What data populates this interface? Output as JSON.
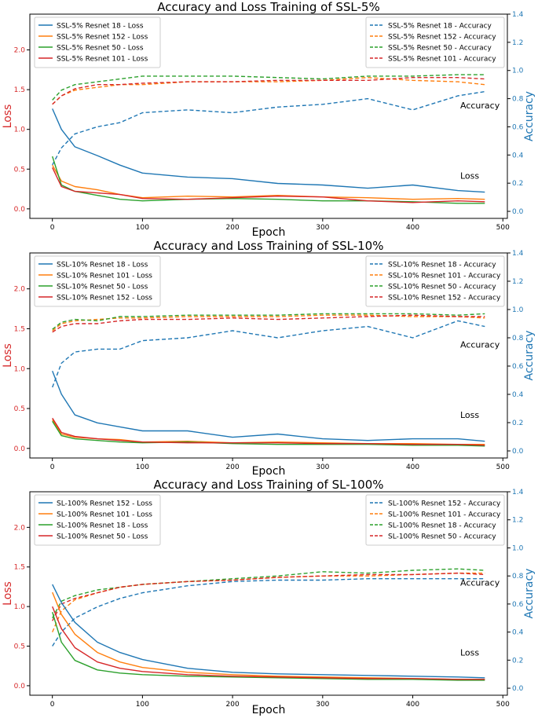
{
  "colors": {
    "c18": "#1f77b4",
    "c101": "#ff7f0e",
    "c50": "#2ca02c",
    "c152": "#d62728",
    "loss_axis": "#d62728",
    "acc_axis": "#1f77b4"
  },
  "chart_data": [
    {
      "type": "line",
      "title": "Accuracy and Loss Training of SSL-5%",
      "xlabel": "Epoch",
      "ylabel": "Loss",
      "y2label": "Accuracy",
      "xlim": [
        -25,
        505
      ],
      "ylim": [
        -0.12,
        2.45
      ],
      "y2lim": [
        -0.05,
        1.4
      ],
      "xticks": [
        "0",
        "100",
        "200",
        "300",
        "400",
        "500"
      ],
      "yticks": [
        "0.0",
        "0.5",
        "1.0",
        "1.5",
        "2.0"
      ],
      "y2ticks": [
        "0.0",
        "0.2",
        "0.4",
        "0.6",
        "0.8",
        "1.0",
        "1.2",
        "1.4"
      ],
      "annotations": [
        "Accuracy",
        "Loss"
      ],
      "legend_loss_position": "top-left",
      "legend_acc_position": "top-right",
      "loss_series": [
        {
          "name": "SSL-5% Resnet 18 - Loss",
          "color": "#1f77b4",
          "x": [
            0,
            10,
            25,
            50,
            75,
            100,
            150,
            200,
            250,
            300,
            350,
            400,
            450,
            480
          ],
          "y": [
            1.26,
            1.0,
            0.78,
            0.67,
            0.55,
            0.45,
            0.4,
            0.38,
            0.32,
            0.3,
            0.26,
            0.3,
            0.23,
            0.21
          ]
        },
        {
          "name": "SSL-5% Resnet 152 - Loss",
          "color": "#ff7f0e",
          "x": [
            0,
            10,
            25,
            50,
            75,
            100,
            150,
            200,
            250,
            300,
            350,
            400,
            450,
            480
          ],
          "y": [
            0.55,
            0.35,
            0.28,
            0.24,
            0.18,
            0.14,
            0.16,
            0.15,
            0.17,
            0.15,
            0.14,
            0.12,
            0.13,
            0.12
          ]
        },
        {
          "name": "SSL-5% Resnet 50 - Loss",
          "color": "#2ca02c",
          "x": [
            0,
            10,
            25,
            50,
            75,
            100,
            150,
            200,
            250,
            300,
            350,
            400,
            450,
            480
          ],
          "y": [
            0.66,
            0.3,
            0.22,
            0.17,
            0.12,
            0.1,
            0.12,
            0.13,
            0.12,
            0.1,
            0.1,
            0.09,
            0.07,
            0.07
          ]
        },
        {
          "name": "SSL-5% Resnet 101 - Loss",
          "color": "#d62728",
          "x": [
            0,
            10,
            25,
            50,
            75,
            100,
            150,
            200,
            250,
            300,
            350,
            400,
            450,
            480
          ],
          "y": [
            0.52,
            0.28,
            0.22,
            0.2,
            0.18,
            0.13,
            0.12,
            0.14,
            0.16,
            0.15,
            0.1,
            0.08,
            0.1,
            0.09
          ]
        }
      ],
      "acc_series": [
        {
          "name": "SSL-5% Resnet 18 - Accuracy",
          "color": "#1f77b4",
          "x": [
            0,
            10,
            25,
            50,
            75,
            100,
            150,
            200,
            250,
            300,
            350,
            400,
            450,
            480
          ],
          "y": [
            0.33,
            0.45,
            0.55,
            0.6,
            0.63,
            0.7,
            0.72,
            0.7,
            0.74,
            0.76,
            0.8,
            0.72,
            0.82,
            0.85
          ]
        },
        {
          "name": "SSL-5% Resnet 152 - Accuracy",
          "color": "#ff7f0e",
          "x": [
            0,
            10,
            25,
            50,
            75,
            100,
            150,
            200,
            250,
            300,
            350,
            400,
            450,
            480
          ],
          "y": [
            0.76,
            0.82,
            0.86,
            0.88,
            0.9,
            0.9,
            0.92,
            0.92,
            0.92,
            0.93,
            0.95,
            0.93,
            0.92,
            0.9
          ]
        },
        {
          "name": "SSL-5% Resnet 50 - Accuracy",
          "color": "#2ca02c",
          "x": [
            0,
            10,
            25,
            50,
            75,
            100,
            150,
            200,
            250,
            300,
            350,
            400,
            450,
            480
          ],
          "y": [
            0.79,
            0.86,
            0.9,
            0.92,
            0.94,
            0.96,
            0.96,
            0.96,
            0.95,
            0.94,
            0.96,
            0.96,
            0.97,
            0.97
          ]
        },
        {
          "name": "SSL-5% Resnet 101 - Accuracy",
          "color": "#d62728",
          "x": [
            0,
            10,
            25,
            50,
            75,
            100,
            150,
            200,
            250,
            300,
            350,
            400,
            450,
            480
          ],
          "y": [
            0.76,
            0.82,
            0.87,
            0.9,
            0.9,
            0.91,
            0.92,
            0.92,
            0.93,
            0.93,
            0.93,
            0.95,
            0.95,
            0.94
          ]
        }
      ]
    },
    {
      "type": "line",
      "title": "Accuracy and Loss Training of SSL-10%",
      "xlabel": "Epoch",
      "ylabel": "Loss",
      "y2label": "Accuracy",
      "xlim": [
        -25,
        505
      ],
      "ylim": [
        -0.12,
        2.45
      ],
      "y2lim": [
        -0.05,
        1.4
      ],
      "xticks": [
        "0",
        "100",
        "200",
        "300",
        "400",
        "500"
      ],
      "yticks": [
        "0.0",
        "0.5",
        "1.0",
        "1.5",
        "2.0"
      ],
      "y2ticks": [
        "0.0",
        "0.2",
        "0.4",
        "0.6",
        "0.8",
        "1.0",
        "1.2",
        "1.4"
      ],
      "annotations": [
        "Accuracy",
        "Loss"
      ],
      "legend_loss_position": "top-left",
      "legend_acc_position": "top-right",
      "loss_series": [
        {
          "name": "SSL-10% Resnet 18 - Loss",
          "color": "#1f77b4",
          "x": [
            0,
            10,
            25,
            50,
            75,
            100,
            150,
            200,
            250,
            300,
            350,
            400,
            450,
            480
          ],
          "y": [
            0.97,
            0.68,
            0.42,
            0.32,
            0.27,
            0.22,
            0.22,
            0.14,
            0.18,
            0.12,
            0.1,
            0.12,
            0.12,
            0.09
          ]
        },
        {
          "name": "SSL-10% Resnet 101 - Loss",
          "color": "#ff7f0e",
          "x": [
            0,
            10,
            25,
            50,
            75,
            100,
            150,
            200,
            250,
            300,
            350,
            400,
            450,
            480
          ],
          "y": [
            0.36,
            0.18,
            0.14,
            0.12,
            0.11,
            0.08,
            0.09,
            0.07,
            0.08,
            0.07,
            0.06,
            0.06,
            0.05,
            0.05
          ]
        },
        {
          "name": "SSL-10% Resnet 50 - Loss",
          "color": "#2ca02c",
          "x": [
            0,
            10,
            25,
            50,
            75,
            100,
            150,
            200,
            250,
            300,
            350,
            400,
            450,
            480
          ],
          "y": [
            0.34,
            0.16,
            0.12,
            0.1,
            0.08,
            0.07,
            0.08,
            0.06,
            0.05,
            0.05,
            0.05,
            0.04,
            0.04,
            0.03
          ]
        },
        {
          "name": "SSL-10% Resnet 152 - Loss",
          "color": "#d62728",
          "x": [
            0,
            10,
            25,
            50,
            75,
            100,
            150,
            200,
            250,
            300,
            350,
            400,
            450,
            480
          ],
          "y": [
            0.38,
            0.2,
            0.15,
            0.12,
            0.1,
            0.08,
            0.07,
            0.07,
            0.07,
            0.06,
            0.06,
            0.05,
            0.05,
            0.04
          ]
        }
      ],
      "acc_series": [
        {
          "name": "SSL-10% Resnet 18 - Accuracy",
          "color": "#1f77b4",
          "x": [
            0,
            10,
            25,
            50,
            75,
            100,
            150,
            200,
            250,
            300,
            350,
            400,
            450,
            480
          ],
          "y": [
            0.45,
            0.62,
            0.7,
            0.72,
            0.72,
            0.78,
            0.8,
            0.85,
            0.8,
            0.85,
            0.88,
            0.8,
            0.92,
            0.88
          ]
        },
        {
          "name": "SSL-10% Resnet 101 - Accuracy",
          "color": "#ff7f0e",
          "x": [
            0,
            10,
            25,
            50,
            75,
            100,
            150,
            200,
            250,
            300,
            350,
            400,
            450,
            480
          ],
          "y": [
            0.85,
            0.9,
            0.92,
            0.93,
            0.94,
            0.94,
            0.95,
            0.95,
            0.95,
            0.96,
            0.96,
            0.95,
            0.95,
            0.94
          ]
        },
        {
          "name": "SSL-10% Resnet 50 - Accuracy",
          "color": "#2ca02c",
          "x": [
            0,
            10,
            25,
            50,
            75,
            100,
            150,
            200,
            250,
            300,
            350,
            400,
            450,
            480
          ],
          "y": [
            0.86,
            0.91,
            0.93,
            0.92,
            0.95,
            0.95,
            0.96,
            0.96,
            0.96,
            0.97,
            0.97,
            0.97,
            0.96,
            0.97
          ]
        },
        {
          "name": "SSL-10% Resnet 152 - Accuracy",
          "color": "#d62728",
          "x": [
            0,
            10,
            25,
            50,
            75,
            100,
            150,
            200,
            250,
            300,
            350,
            400,
            450,
            480
          ],
          "y": [
            0.84,
            0.88,
            0.9,
            0.9,
            0.92,
            0.93,
            0.93,
            0.94,
            0.93,
            0.94,
            0.95,
            0.96,
            0.95,
            0.95
          ]
        }
      ]
    },
    {
      "type": "line",
      "title": "Accuracy and Loss Training of SL-100%",
      "xlabel": "Epoch",
      "ylabel": "Loss",
      "y2label": "Accuracy",
      "xlim": [
        -25,
        505
      ],
      "ylim": [
        -0.12,
        2.45
      ],
      "y2lim": [
        -0.05,
        1.4
      ],
      "xticks": [
        "0",
        "100",
        "200",
        "300",
        "400",
        "500"
      ],
      "yticks": [
        "0.0",
        "0.5",
        "1.0",
        "1.5",
        "2.0"
      ],
      "y2ticks": [
        "0.0",
        "0.2",
        "0.4",
        "0.6",
        "0.8",
        "1.0",
        "1.2",
        "1.4"
      ],
      "annotations": [
        "Accuracy",
        "Loss"
      ],
      "legend_loss_position": "top-left",
      "legend_acc_position": "top-right",
      "loss_series": [
        {
          "name": "SL-100% Resnet 152 - Loss",
          "color": "#1f77b4",
          "x": [
            0,
            10,
            25,
            50,
            75,
            100,
            150,
            200,
            250,
            300,
            350,
            400,
            450,
            480
          ],
          "y": [
            1.28,
            1.05,
            0.8,
            0.55,
            0.42,
            0.33,
            0.22,
            0.17,
            0.15,
            0.14,
            0.13,
            0.12,
            0.11,
            0.1
          ]
        },
        {
          "name": "SL-100% Resnet 101 - Loss",
          "color": "#ff7f0e",
          "x": [
            0,
            10,
            25,
            50,
            75,
            100,
            150,
            200,
            250,
            300,
            350,
            400,
            450,
            480
          ],
          "y": [
            1.18,
            0.9,
            0.65,
            0.42,
            0.3,
            0.23,
            0.17,
            0.14,
            0.12,
            0.11,
            0.1,
            0.09,
            0.08,
            0.08
          ]
        },
        {
          "name": "SL-100% Resnet 18 - Loss",
          "color": "#2ca02c",
          "x": [
            0,
            10,
            25,
            50,
            75,
            100,
            150,
            200,
            250,
            300,
            350,
            400,
            450,
            480
          ],
          "y": [
            0.93,
            0.55,
            0.32,
            0.2,
            0.16,
            0.14,
            0.12,
            0.11,
            0.1,
            0.09,
            0.08,
            0.08,
            0.07,
            0.07
          ]
        },
        {
          "name": "SL-100% Resnet 50 - Loss",
          "color": "#d62728",
          "x": [
            0,
            10,
            25,
            50,
            75,
            100,
            150,
            200,
            250,
            300,
            350,
            400,
            450,
            480
          ],
          "y": [
            1.0,
            0.72,
            0.48,
            0.3,
            0.22,
            0.18,
            0.14,
            0.12,
            0.11,
            0.1,
            0.09,
            0.09,
            0.08,
            0.08
          ]
        }
      ],
      "acc_series": [
        {
          "name": "SL-100% Resnet 152 - Accuracy",
          "color": "#1f77b4",
          "x": [
            0,
            10,
            25,
            50,
            75,
            100,
            150,
            200,
            250,
            300,
            350,
            400,
            450,
            480
          ],
          "y": [
            0.3,
            0.4,
            0.5,
            0.58,
            0.64,
            0.68,
            0.73,
            0.76,
            0.77,
            0.77,
            0.78,
            0.78,
            0.78,
            0.78
          ]
        },
        {
          "name": "SL-100% Resnet 101 - Accuracy",
          "color": "#ff7f0e",
          "x": [
            0,
            10,
            25,
            50,
            75,
            100,
            150,
            200,
            250,
            300,
            350,
            400,
            450,
            480
          ],
          "y": [
            0.4,
            0.55,
            0.63,
            0.68,
            0.72,
            0.74,
            0.76,
            0.77,
            0.79,
            0.8,
            0.8,
            0.81,
            0.82,
            0.82
          ]
        },
        {
          "name": "SL-100% Resnet 18 - Accuracy",
          "color": "#2ca02c",
          "x": [
            0,
            10,
            25,
            50,
            75,
            100,
            150,
            200,
            250,
            300,
            350,
            400,
            450,
            480
          ],
          "y": [
            0.5,
            0.62,
            0.66,
            0.7,
            0.72,
            0.74,
            0.76,
            0.78,
            0.8,
            0.83,
            0.82,
            0.84,
            0.85,
            0.84
          ]
        },
        {
          "name": "SL-100% Resnet 50 - Accuracy",
          "color": "#d62728",
          "x": [
            0,
            10,
            25,
            50,
            75,
            100,
            150,
            200,
            250,
            300,
            350,
            400,
            450,
            480
          ],
          "y": [
            0.48,
            0.6,
            0.64,
            0.68,
            0.72,
            0.74,
            0.76,
            0.77,
            0.79,
            0.8,
            0.81,
            0.81,
            0.82,
            0.81
          ]
        }
      ]
    }
  ]
}
